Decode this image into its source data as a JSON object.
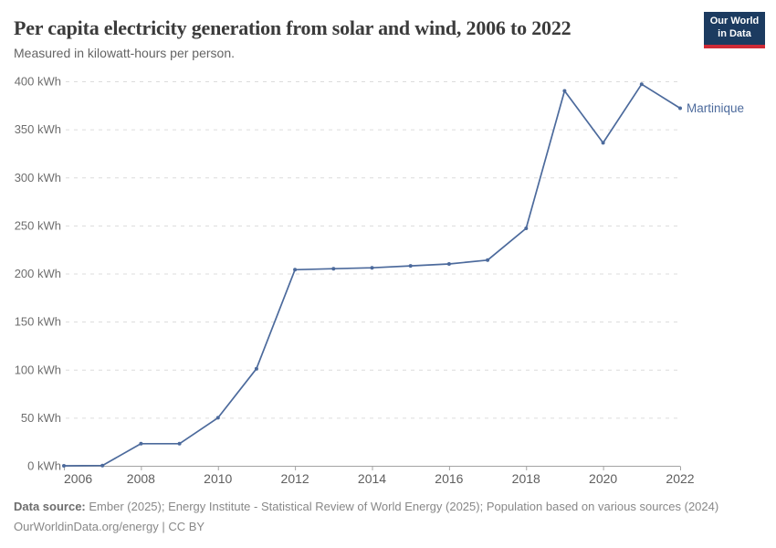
{
  "header": {
    "title": "Per capita electricity generation from solar and wind, 2006 to 2022",
    "subtitle": "Measured in kilowatt-hours per person.",
    "logo": {
      "line1": "Our World",
      "line2": "in Data",
      "bg_color": "#1c3b60",
      "accent_color": "#cf2a36"
    }
  },
  "chart_data": {
    "type": "line",
    "title": "Per capita electricity generation from solar and wind, 2006 to 2022",
    "ylabel": "",
    "xlabel": "",
    "unit_suffix": " kWh",
    "x": [
      2006,
      2007,
      2008,
      2009,
      2010,
      2011,
      2012,
      2013,
      2014,
      2015,
      2016,
      2017,
      2018,
      2019,
      2020,
      2021,
      2022
    ],
    "series": [
      {
        "name": "Martinique",
        "color": "#4c6a9c",
        "values": [
          0,
          0.3,
          23,
          23,
          50,
          101,
          204,
          205,
          206,
          208,
          210,
          214,
          247,
          390,
          336,
          397,
          372
        ]
      }
    ],
    "ylim": [
      0,
      400
    ],
    "yticks": [
      0,
      50,
      100,
      150,
      200,
      250,
      300,
      350,
      400
    ],
    "xticks": [
      2006,
      2008,
      2010,
      2012,
      2014,
      2016,
      2018,
      2020,
      2022
    ],
    "grid": "dashed horizontal",
    "legend_position": "end-of-line label",
    "palette": {
      "grid_color": "#dcdcdc",
      "axis_color": "#a3a3a3",
      "ytick_label_color": "#6e6e6e",
      "xtick_label_color": "#5e5e5e"
    }
  },
  "footer": {
    "source_label": "Data source:",
    "sources": "Ember (2025); Energy Institute - Statistical Review of World Energy (2025); Population based on various sources (2024)",
    "url": "OurWorldinData.org/energy",
    "license": " | CC BY"
  }
}
